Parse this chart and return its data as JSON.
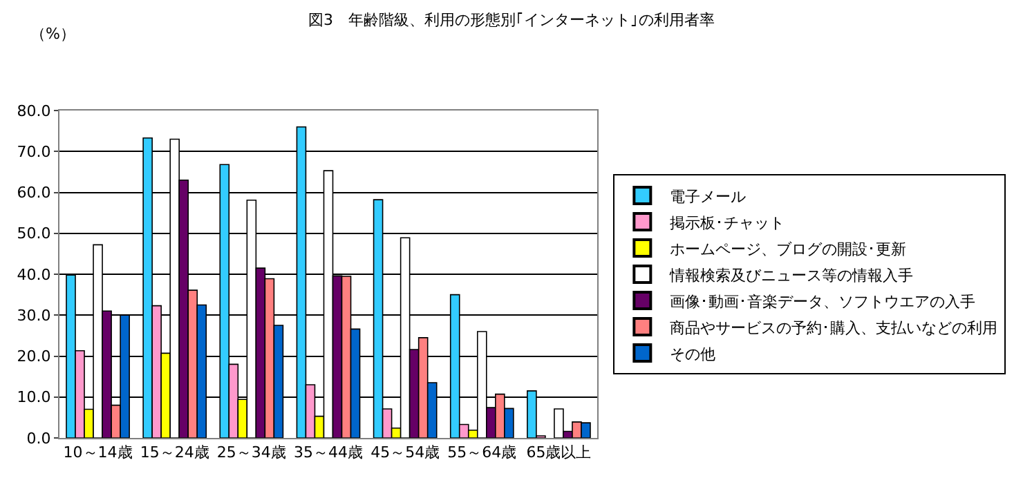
{
  "chart_data": {
    "type": "bar",
    "title": "図3　年齢階級、利用の形態別｢インターネット｣の利用者率",
    "ylabel": "（%）",
    "categories": [
      "10～14歳",
      "15～24歳",
      "25～34歳",
      "35～44歳",
      "45～54歳",
      "55～64歳",
      "65歳以上"
    ],
    "series": [
      {
        "name": "電子メール",
        "color": "#33ccff",
        "values": [
          39.8,
          73.3,
          66.8,
          76.0,
          58.2,
          35.0,
          11.5
        ]
      },
      {
        "name": "掲示板･チャット",
        "color": "#ff99cc",
        "values": [
          21.3,
          32.3,
          18.0,
          13.0,
          7.1,
          3.3,
          0.5
        ]
      },
      {
        "name": "ホームページ、ブログの開設･更新",
        "color": "#ffff00",
        "values": [
          7.0,
          20.7,
          9.4,
          5.3,
          2.4,
          1.9,
          null
        ]
      },
      {
        "name": "情報検索及びニュース等の情報入手",
        "color": "#ffffff",
        "values": [
          47.2,
          73.0,
          58.1,
          65.3,
          48.9,
          26.0,
          7.1
        ]
      },
      {
        "name": "画像･動画･音楽データ、ソフトウエアの入手",
        "color": "#660066",
        "values": [
          31.0,
          63.0,
          41.5,
          39.6,
          21.6,
          7.4,
          1.6
        ]
      },
      {
        "name": "商品やサービスの予約･購入、支払いなどの利用",
        "color": "#ff8080",
        "values": [
          8.0,
          36.1,
          38.9,
          39.5,
          24.5,
          10.7,
          3.9
        ]
      },
      {
        "name": "その他",
        "color": "#0066cc",
        "values": [
          30.0,
          32.5,
          27.5,
          26.6,
          13.5,
          7.2,
          3.7
        ]
      }
    ],
    "ylim": [
      0,
      80
    ],
    "yticks": [
      {
        "value": 0,
        "label": "0.0"
      },
      {
        "value": 10,
        "label": "10.0"
      },
      {
        "value": 20,
        "label": "20.0"
      },
      {
        "value": 30,
        "label": "30.0"
      },
      {
        "value": 40,
        "label": "40.0"
      },
      {
        "value": 50,
        "label": "50.0"
      },
      {
        "value": 60,
        "label": "60.0"
      },
      {
        "value": 70,
        "label": "70.0"
      },
      {
        "value": 80,
        "label": "80.0"
      }
    ],
    "grid": "y",
    "legend": "right"
  }
}
